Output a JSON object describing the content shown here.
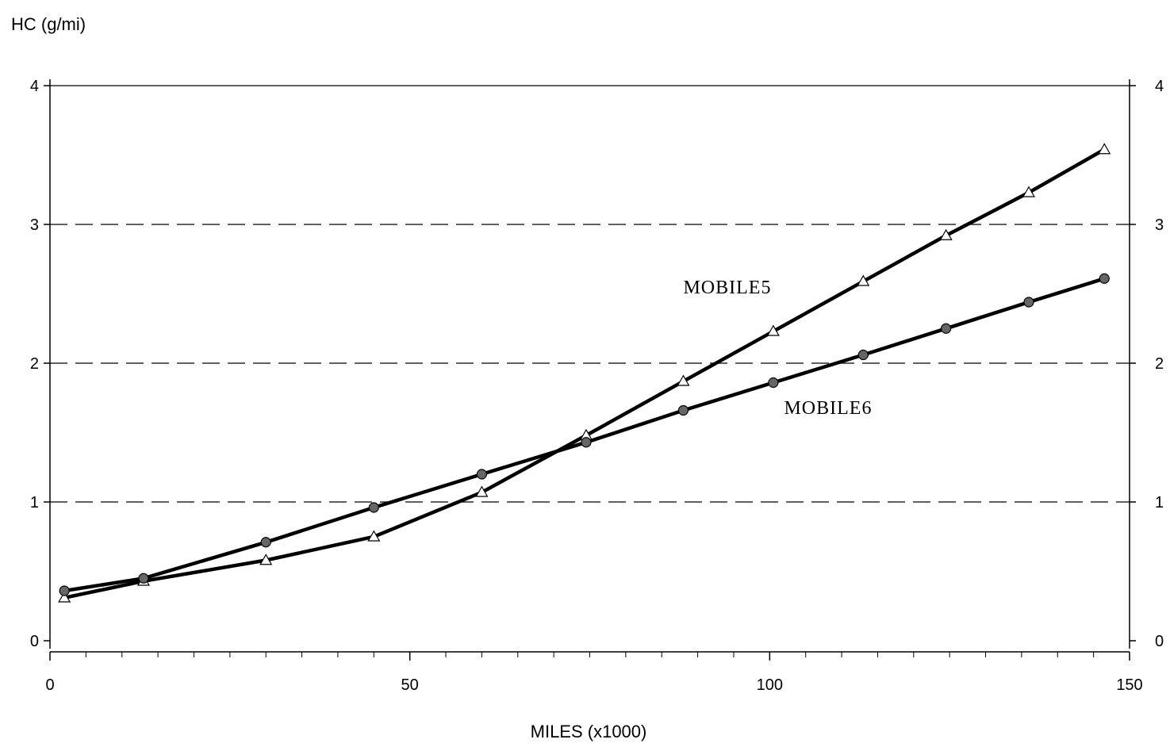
{
  "chart_data": {
    "type": "line",
    "ylabel": "HC (g/mi)",
    "xlabel": "MILES (x1000)",
    "xlim": [
      0,
      150
    ],
    "ylim": [
      0,
      4
    ],
    "x_ticks": [
      0,
      50,
      100,
      150
    ],
    "y_ticks": [
      0,
      1,
      2,
      3,
      4
    ],
    "y_ticks_right": [
      0,
      1,
      2,
      3,
      4
    ],
    "grid": "horizontal dashed at 1, 2, 3; solid at 4",
    "series": [
      {
        "name": "MOBILE5",
        "marker": "triangle",
        "x": [
          2,
          13,
          30,
          45,
          60,
          74.5,
          88,
          100.5,
          113,
          124.5,
          136,
          146.5
        ],
        "y": [
          0.31,
          0.43,
          0.58,
          0.75,
          1.07,
          1.48,
          1.87,
          2.23,
          2.59,
          2.92,
          3.23,
          3.54
        ]
      },
      {
        "name": "MOBILE6",
        "marker": "circle",
        "x": [
          2,
          13,
          30,
          45,
          60,
          74.5,
          88,
          100.5,
          113,
          124.5,
          136,
          146.5
        ],
        "y": [
          0.36,
          0.45,
          0.71,
          0.96,
          1.2,
          1.43,
          1.66,
          1.86,
          2.06,
          2.25,
          2.44,
          2.61
        ]
      }
    ],
    "annotations": [
      {
        "text": "MOBILE5",
        "x": 88,
        "y": 2.55
      },
      {
        "text": "MOBILE6",
        "x": 102,
        "y": 1.68
      }
    ],
    "colors": {
      "line": "#000000",
      "grid": "#000000",
      "background": "#ffffff"
    }
  }
}
